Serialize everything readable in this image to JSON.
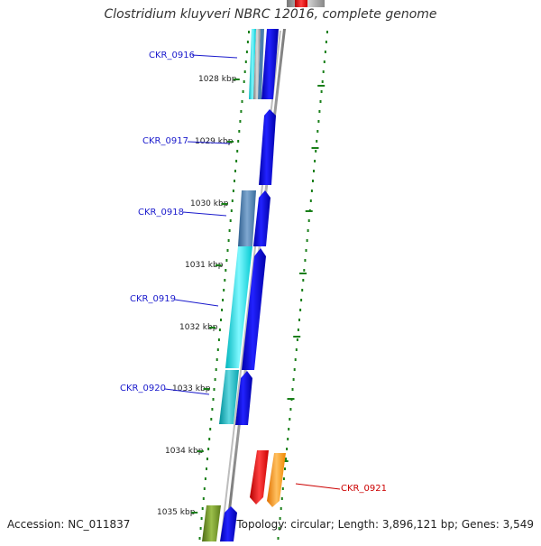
{
  "title": "Clostridium kluyveri NBRC 12016, complete genome",
  "footer": {
    "accession_label": "Accession:",
    "accession": "NC_011837",
    "topology_label": "Topology:",
    "topology": "circular",
    "length_label": "Length:",
    "length": "3,896,121 bp",
    "genes_label": "Genes:",
    "genes": "3,549"
  },
  "ticks": [
    "1028 kbp",
    "1029 kbp",
    "1030 kbp",
    "1031 kbp",
    "1032 kbp",
    "1033 kbp",
    "1034 kbp",
    "1035 kbp"
  ],
  "genes": [
    {
      "label": "CKR_0916",
      "color": "#1a1acc"
    },
    {
      "label": "CKR_0917",
      "color": "#1a1acc"
    },
    {
      "label": "CKR_0918",
      "color": "#1a1acc"
    },
    {
      "label": "CKR_0919",
      "color": "#1a1acc"
    },
    {
      "label": "CKR_0920",
      "color": "#1a1acc"
    },
    {
      "label": "CKR_0921",
      "color": "#cc0000"
    }
  ],
  "colors": {
    "forward_cds": "#0000ee",
    "reverse_cds_cyan": "#00e5ee",
    "reverse_cds_steel": "#4a7fb0",
    "reverse_cds_teal": "#15b5bf",
    "reverse_cds_olive": "#6b8e23",
    "highlight_red": "#ff0000",
    "highlight_orange": "#ff9900",
    "backbone": "#8c8c8c",
    "ticks": "#1a7f1a"
  }
}
